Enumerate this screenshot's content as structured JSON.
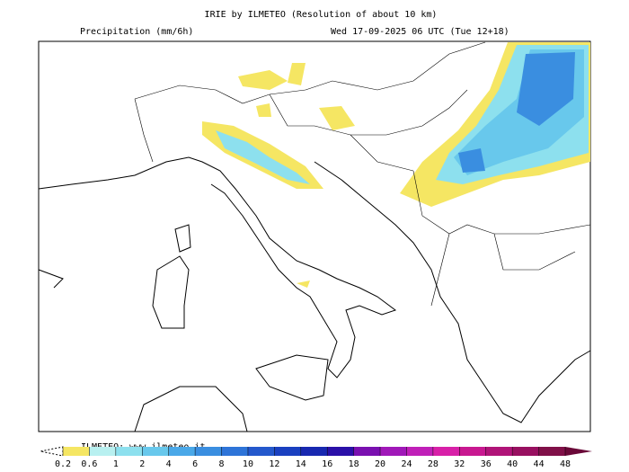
{
  "header": {
    "title": "IRIE by ILMETEO (Resolution of about 10 km)",
    "field": "Precipitation (mm/6h)",
    "valid_time": "Wed 17-09-2025 06 UTC (Tue 12+18)"
  },
  "colorbar": {
    "credit": "ILMETEO: www.ilmeteo.it",
    "ticks": [
      0.2,
      0.6,
      1,
      2,
      4,
      6,
      8,
      10,
      12,
      14,
      16,
      18,
      20,
      24,
      28,
      32,
      36,
      40,
      44,
      48
    ],
    "colors": [
      "#f5e663",
      "#b8f0f0",
      "#8de0ee",
      "#68c8ec",
      "#4aa8e8",
      "#3a8ee0",
      "#2e74d8",
      "#2458cc",
      "#1a40c0",
      "#1828b0",
      "#2a10a8",
      "#7a10b0",
      "#a018b8",
      "#c020b8",
      "#d820a8",
      "#c81890",
      "#b01478",
      "#981060",
      "#801048",
      "#6a0838"
    ]
  }
}
